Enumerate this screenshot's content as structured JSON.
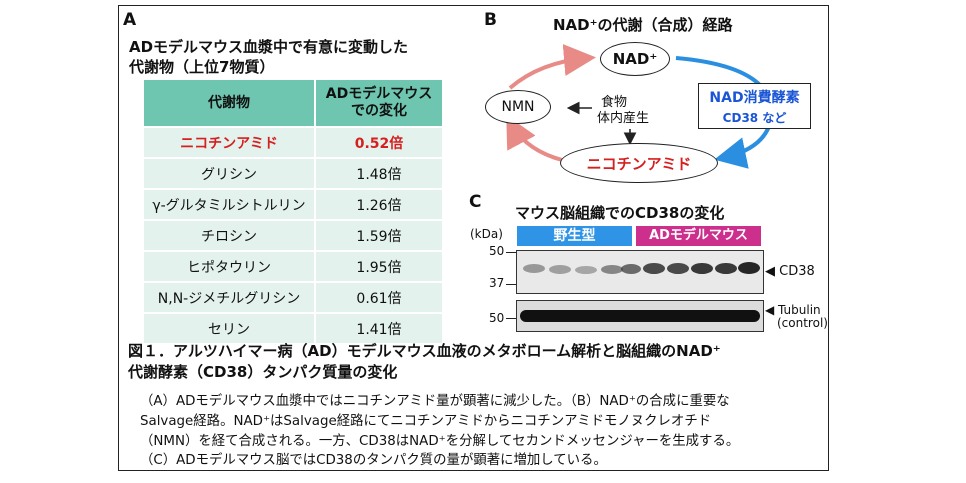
{
  "panelA": {
    "letter": "A",
    "title_line1": "ADモデルマウス血漿中で有意に変動した",
    "title_line2": "代謝物（上位7物質）",
    "header_name": "代謝物",
    "header_value_line1": "ADモデルマウス",
    "header_value_line2": "での変化",
    "rows": [
      {
        "name": "ニコチンアミド",
        "value": "0.52倍"
      },
      {
        "name": "グリシン",
        "value": "1.48倍"
      },
      {
        "name": "γ-グルタミルシトルリン",
        "value": "1.26倍"
      },
      {
        "name": "チロシン",
        "value": "1.59倍"
      },
      {
        "name": "ヒポタウリン",
        "value": "1.95倍"
      },
      {
        "name": "N,N-ジメチルグリシン",
        "value": "0.61倍"
      },
      {
        "name": "セリン",
        "value": "1.41倍"
      }
    ]
  },
  "panelB": {
    "letter": "B",
    "title": "NAD⁺の代謝（合成）経路",
    "nad": "NAD⁺",
    "nmn": "NMN",
    "nicotinamide": "ニコチンアミド",
    "food_line1": "食物",
    "food_line2": "体内産生",
    "enzyme_line1": "NAD消費酵素",
    "enzyme_line2": "CD38 など",
    "colors": {
      "red_arrow": "#e88a86",
      "blue_arrow": "#2a8fe0",
      "enzyme_text": "#1a55d6",
      "highlight": "#d61f1f"
    }
  },
  "panelC": {
    "letter": "C",
    "title": "マウス脳組織でのCD38の変化",
    "kda": "(kDa)",
    "group_wt": "野生型",
    "group_ad": "ADモデルマウス",
    "marker_50a": "50",
    "marker_37": "37",
    "marker_50b": "50",
    "label_cd38": "◀ CD38",
    "label_tubulin_line1": "◀ Tubulin",
    "label_tubulin_line2": "(control)",
    "colors": {
      "wt": "#2f93e6",
      "ad": "#cc2f8c"
    }
  },
  "caption": {
    "title_line1": "図１．アルツハイマー病（AD）モデルマウス血液のメタボローム解析と脳組織のNAD⁺",
    "title_line2": "代謝酵素（CD38）タンパク質量の変化",
    "body_line1": "（A）ADモデルマウス血漿中ではニコチンアミド量が顕著に減少した。（B）NAD⁺の合成に重要な",
    "body_line2": "Salvage経路。NAD⁺はSalvage経路にてニコチンアミドからニコチンアミドモノヌクレオチド",
    "body_line3": "（NMN）を経て合成される。一方、CD38はNAD⁺を分解してセカンドメッセンジャーを生成する。",
    "body_line4": "（C）ADモデルマウス脳ではCD38のタンパク質の量が顕著に増加している。"
  }
}
